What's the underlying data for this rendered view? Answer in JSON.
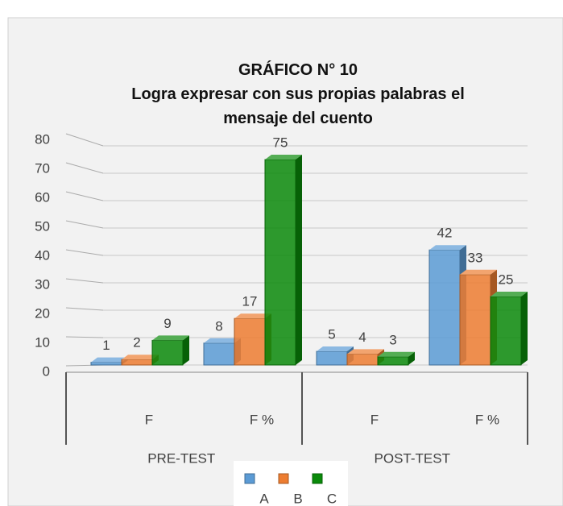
{
  "chart_data": {
    "type": "bar3d",
    "title": "GRÁFICO N° 10",
    "subtitle": "Logra expresar con sus propias palabras el mensaje del cuento",
    "categories": [
      "F",
      "F %",
      "F",
      "F %"
    ],
    "groups": [
      "PRE-TEST",
      "POST-TEST"
    ],
    "series": [
      {
        "name": "A",
        "color": "#5b9bd5",
        "values": [
          1,
          8,
          5,
          42
        ]
      },
      {
        "name": "B",
        "color": "#ed7d31",
        "values": [
          2,
          17,
          4,
          33
        ]
      },
      {
        "name": "C",
        "color": "#0a8a0a",
        "values": [
          9,
          75,
          3,
          25
        ]
      }
    ],
    "ylim": [
      0,
      80
    ],
    "yticks": [
      0,
      10,
      20,
      30,
      40,
      50,
      60,
      70,
      80
    ],
    "grid": true,
    "legend": "bottom"
  }
}
